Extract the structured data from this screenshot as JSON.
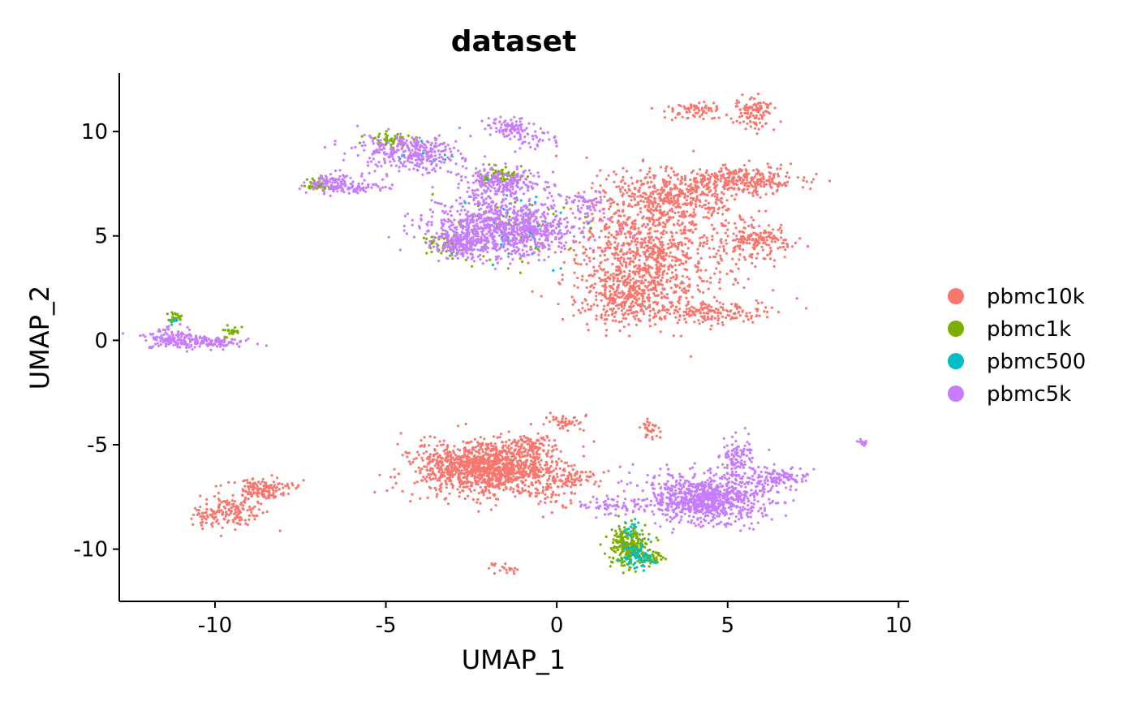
{
  "chart_data": {
    "type": "scatter",
    "title": "dataset",
    "xlabel": "UMAP_1",
    "ylabel": "UMAP_2",
    "xlim": [
      -12.8,
      10.3
    ],
    "ylim": [
      -12.5,
      12.8
    ],
    "xticks": [
      -10,
      -5,
      0,
      5,
      10
    ],
    "yticks": [
      -10,
      -5,
      0,
      5,
      10
    ],
    "xtick_labels": [
      "-10",
      "-5",
      "0",
      "5",
      "10"
    ],
    "ytick_labels": [
      "-10",
      "-5",
      "0",
      "5",
      "10"
    ],
    "grid": false,
    "legend_position": "right",
    "series": [
      {
        "name": "pbmc10k",
        "color": "#F8766D",
        "clusters": [
          {
            "cx": 2.8,
            "cy": 4.3,
            "sx": 1.2,
            "sy": 1.4,
            "n": 900
          },
          {
            "cx": 2.0,
            "cy": 2.1,
            "sx": 0.55,
            "sy": 0.7,
            "n": 320
          },
          {
            "cx": 3.3,
            "cy": 7.0,
            "sx": 1.0,
            "sy": 0.6,
            "n": 380
          },
          {
            "cx": 5.4,
            "cy": 7.7,
            "sx": 0.9,
            "sy": 0.35,
            "n": 280
          },
          {
            "cx": 5.8,
            "cy": 4.8,
            "sx": 0.5,
            "sy": 0.45,
            "n": 170
          },
          {
            "cx": 4.5,
            "cy": 1.4,
            "sx": 0.8,
            "sy": 0.3,
            "n": 180
          },
          {
            "cx": 4.0,
            "cy": 11.0,
            "sx": 0.5,
            "sy": 0.2,
            "n": 70
          },
          {
            "cx": 5.8,
            "cy": 10.9,
            "sx": 0.35,
            "sy": 0.4,
            "n": 110
          },
          {
            "cx": -2.0,
            "cy": -6.1,
            "sx": 1.05,
            "sy": 0.62,
            "n": 1300
          },
          {
            "cx": -0.8,
            "cy": -5.0,
            "sx": 0.5,
            "sy": 0.25,
            "n": 80
          },
          {
            "cx": 0.2,
            "cy": -3.9,
            "sx": 0.3,
            "sy": 0.2,
            "n": 45
          },
          {
            "cx": -0.2,
            "cy": -7.2,
            "sx": 0.35,
            "sy": 0.5,
            "n": 60
          },
          {
            "cx": 0.6,
            "cy": -6.6,
            "sx": 0.4,
            "sy": 0.2,
            "n": 45
          },
          {
            "cx": -8.6,
            "cy": -7.1,
            "sx": 0.45,
            "sy": 0.25,
            "n": 140
          },
          {
            "cx": -9.5,
            "cy": -8.2,
            "sx": 0.45,
            "sy": 0.4,
            "n": 130
          },
          {
            "cx": -10.3,
            "cy": -8.4,
            "sx": 0.3,
            "sy": 0.2,
            "n": 40
          },
          {
            "cx": 2.7,
            "cy": -4.3,
            "sx": 0.15,
            "sy": 0.25,
            "n": 30
          },
          {
            "cx": -1.5,
            "cy": -10.9,
            "sx": 0.25,
            "sy": 0.15,
            "n": 20
          }
        ]
      },
      {
        "name": "pbmc1k",
        "color": "#7CAE00",
        "clusters": [
          {
            "cx": 2.1,
            "cy": -9.9,
            "sx": 0.28,
            "sy": 0.5,
            "n": 280
          },
          {
            "cx": 2.8,
            "cy": -10.4,
            "sx": 0.2,
            "sy": 0.15,
            "n": 40
          },
          {
            "cx": -3.2,
            "cy": 4.6,
            "sx": 0.35,
            "sy": 0.3,
            "n": 60
          },
          {
            "cx": -1.6,
            "cy": 7.9,
            "sx": 0.35,
            "sy": 0.2,
            "n": 70
          },
          {
            "cx": -4.8,
            "cy": 9.6,
            "sx": 0.35,
            "sy": 0.2,
            "n": 45
          },
          {
            "cx": -7.0,
            "cy": 7.4,
            "sx": 0.2,
            "sy": 0.15,
            "n": 40
          },
          {
            "cx": -11.2,
            "cy": 1.1,
            "sx": 0.12,
            "sy": 0.15,
            "n": 25
          },
          {
            "cx": -9.5,
            "cy": 0.4,
            "sx": 0.15,
            "sy": 0.12,
            "n": 22
          },
          {
            "cx": -1.3,
            "cy": 5.3,
            "sx": 0.8,
            "sy": 0.9,
            "n": 80
          }
        ]
      },
      {
        "name": "pbmc500",
        "color": "#00BFC4",
        "clusters": [
          {
            "cx": 2.4,
            "cy": -10.3,
            "sx": 0.25,
            "sy": 0.3,
            "n": 70
          },
          {
            "cx": 2.2,
            "cy": -9.0,
            "sx": 0.15,
            "sy": 0.3,
            "n": 18
          },
          {
            "cx": -1.2,
            "cy": 5.5,
            "sx": 0.8,
            "sy": 1.0,
            "n": 40
          },
          {
            "cx": -4.0,
            "cy": 8.8,
            "sx": 0.6,
            "sy": 0.3,
            "n": 15
          },
          {
            "cx": -11.2,
            "cy": 0.9,
            "sx": 0.1,
            "sy": 0.1,
            "n": 6
          }
        ]
      },
      {
        "name": "pbmc5k",
        "color": "#C77CFF",
        "clusters": [
          {
            "cx": -1.5,
            "cy": 5.4,
            "sx": 1.1,
            "sy": 0.7,
            "n": 900
          },
          {
            "cx": -2.8,
            "cy": 4.7,
            "sx": 0.35,
            "sy": 0.35,
            "n": 160
          },
          {
            "cx": -1.6,
            "cy": 7.5,
            "sx": 0.6,
            "sy": 0.35,
            "n": 220
          },
          {
            "cx": -4.3,
            "cy": 9.0,
            "sx": 0.75,
            "sy": 0.45,
            "n": 320
          },
          {
            "cx": -1.4,
            "cy": 10.2,
            "sx": 0.3,
            "sy": 0.2,
            "n": 80
          },
          {
            "cx": -0.8,
            "cy": 9.6,
            "sx": 0.4,
            "sy": 0.25,
            "n": 40
          },
          {
            "cx": -6.4,
            "cy": 7.5,
            "sx": 0.5,
            "sy": 0.25,
            "n": 120
          },
          {
            "cx": -5.6,
            "cy": 7.3,
            "sx": 0.4,
            "sy": 0.1,
            "n": 30
          },
          {
            "cx": 4.4,
            "cy": -7.6,
            "sx": 0.9,
            "sy": 0.55,
            "n": 900
          },
          {
            "cx": 5.3,
            "cy": -5.6,
            "sx": 0.25,
            "sy": 0.5,
            "n": 110
          },
          {
            "cx": 6.4,
            "cy": -6.5,
            "sx": 0.5,
            "sy": 0.25,
            "n": 110
          },
          {
            "cx": 1.6,
            "cy": -7.9,
            "sx": 0.5,
            "sy": 0.2,
            "n": 60
          },
          {
            "cx": -11.3,
            "cy": 0.1,
            "sx": 0.4,
            "sy": 0.25,
            "n": 130
          },
          {
            "cx": -10.1,
            "cy": -0.1,
            "sx": 0.5,
            "sy": 0.12,
            "n": 110
          },
          {
            "cx": 9.0,
            "cy": -4.9,
            "sx": 0.1,
            "sy": 0.07,
            "n": 14
          },
          {
            "cx": 0.8,
            "cy": 6.6,
            "sx": 0.3,
            "sy": 0.3,
            "n": 50
          }
        ]
      }
    ]
  }
}
